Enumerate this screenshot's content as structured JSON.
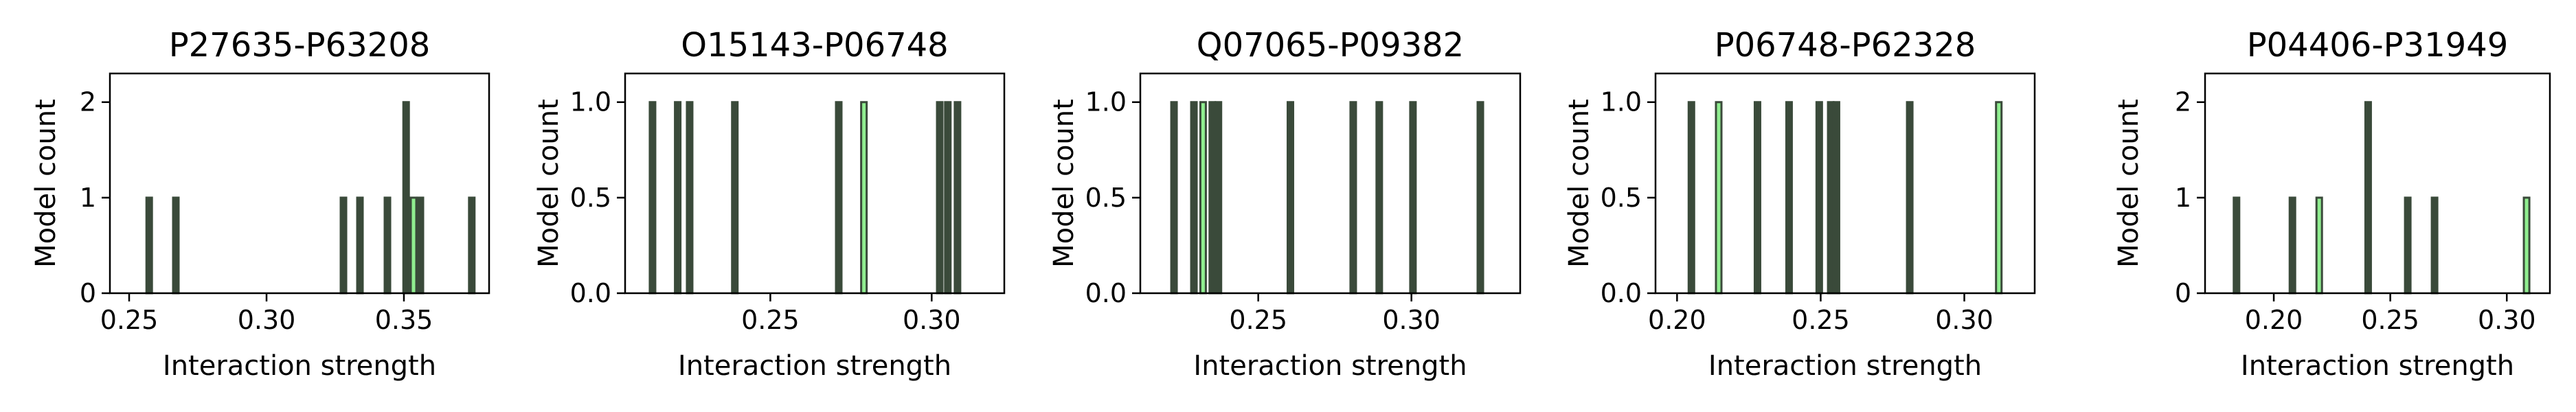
{
  "chart_data": [
    {
      "type": "bar",
      "title": "P27635-P63208",
      "xlabel": "Interaction strength",
      "ylabel": "Model count",
      "xlim": [
        0.243,
        0.381
      ],
      "ylim": [
        0,
        2.3
      ],
      "xticks": [
        {
          "v": 0.25,
          "label": "0.25"
        },
        {
          "v": 0.3,
          "label": "0.30"
        },
        {
          "v": 0.35,
          "label": "0.35"
        }
      ],
      "yticks": [
        {
          "v": 0,
          "label": "0"
        },
        {
          "v": 1,
          "label": "1"
        },
        {
          "v": 2,
          "label": "2"
        }
      ],
      "bars": [
        {
          "x": 0.2573,
          "count": 1,
          "highlight": false
        },
        {
          "x": 0.267,
          "count": 1,
          "highlight": false
        },
        {
          "x": 0.328,
          "count": 1,
          "highlight": false
        },
        {
          "x": 0.334,
          "count": 1,
          "highlight": false
        },
        {
          "x": 0.344,
          "count": 1,
          "highlight": false
        },
        {
          "x": 0.3508,
          "count": 2,
          "highlight": false
        },
        {
          "x": 0.3535,
          "count": 1,
          "highlight": true
        },
        {
          "x": 0.356,
          "count": 1,
          "highlight": false
        },
        {
          "x": 0.3747,
          "count": 1,
          "highlight": false
        }
      ]
    },
    {
      "type": "bar",
      "title": "O15143-P06748",
      "xlabel": "Interaction strength",
      "ylabel": "Model count",
      "xlim": [
        0.205,
        0.3225
      ],
      "ylim": [
        0,
        1.15
      ],
      "xticks": [
        {
          "v": 0.25,
          "label": "0.25"
        },
        {
          "v": 0.3,
          "label": "0.30"
        }
      ],
      "yticks": [
        {
          "v": 0,
          "label": "0.0"
        },
        {
          "v": 0.5,
          "label": "0.5"
        },
        {
          "v": 1.0,
          "label": "1.0"
        }
      ],
      "bars": [
        {
          "x": 0.2135,
          "count": 1,
          "highlight": false
        },
        {
          "x": 0.2213,
          "count": 1,
          "highlight": false
        },
        {
          "x": 0.225,
          "count": 1,
          "highlight": false
        },
        {
          "x": 0.239,
          "count": 1,
          "highlight": false
        },
        {
          "x": 0.2712,
          "count": 1,
          "highlight": false
        },
        {
          "x": 0.279,
          "count": 1,
          "highlight": true
        },
        {
          "x": 0.3025,
          "count": 1,
          "highlight": false
        },
        {
          "x": 0.305,
          "count": 1,
          "highlight": false
        },
        {
          "x": 0.308,
          "count": 1,
          "highlight": false
        }
      ]
    },
    {
      "type": "bar",
      "title": "Q07065-P09382",
      "xlabel": "Interaction strength",
      "ylabel": "Model count",
      "xlim": [
        0.2115,
        0.3355
      ],
      "ylim": [
        0,
        1.15
      ],
      "xticks": [
        {
          "v": 0.25,
          "label": "0.25"
        },
        {
          "v": 0.3,
          "label": "0.30"
        }
      ],
      "yticks": [
        {
          "v": 0,
          "label": "0.0"
        },
        {
          "v": 0.5,
          "label": "0.5"
        },
        {
          "v": 1.0,
          "label": "1.0"
        }
      ],
      "bars": [
        {
          "x": 0.2225,
          "count": 1,
          "highlight": false
        },
        {
          "x": 0.229,
          "count": 1,
          "highlight": false
        },
        {
          "x": 0.232,
          "count": 1,
          "highlight": true
        },
        {
          "x": 0.235,
          "count": 1,
          "highlight": false
        },
        {
          "x": 0.237,
          "count": 1,
          "highlight": false
        },
        {
          "x": 0.2605,
          "count": 1,
          "highlight": false
        },
        {
          "x": 0.281,
          "count": 1,
          "highlight": false
        },
        {
          "x": 0.2895,
          "count": 1,
          "highlight": false
        },
        {
          "x": 0.3005,
          "count": 1,
          "highlight": false
        },
        {
          "x": 0.3225,
          "count": 1,
          "highlight": false
        }
      ]
    },
    {
      "type": "bar",
      "title": "P06748-P62328",
      "xlabel": "Interaction strength",
      "ylabel": "Model count",
      "xlim": [
        0.1925,
        0.3245
      ],
      "ylim": [
        0,
        1.15
      ],
      "xticks": [
        {
          "v": 0.2,
          "label": "0.20"
        },
        {
          "v": 0.25,
          "label": "0.25"
        },
        {
          "v": 0.3,
          "label": "0.30"
        }
      ],
      "yticks": [
        {
          "v": 0,
          "label": "0.0"
        },
        {
          "v": 0.5,
          "label": "0.5"
        },
        {
          "v": 1.0,
          "label": "1.0"
        }
      ],
      "bars": [
        {
          "x": 0.205,
          "count": 1,
          "highlight": false
        },
        {
          "x": 0.2145,
          "count": 1,
          "highlight": true
        },
        {
          "x": 0.228,
          "count": 1,
          "highlight": false
        },
        {
          "x": 0.239,
          "count": 1,
          "highlight": false
        },
        {
          "x": 0.2495,
          "count": 1,
          "highlight": false
        },
        {
          "x": 0.2535,
          "count": 1,
          "highlight": false
        },
        {
          "x": 0.2555,
          "count": 1,
          "highlight": false
        },
        {
          "x": 0.281,
          "count": 1,
          "highlight": false
        },
        {
          "x": 0.312,
          "count": 1,
          "highlight": true
        }
      ]
    },
    {
      "type": "bar",
      "title": "P04406-P31949",
      "xlabel": "Interaction strength",
      "ylabel": "Model count",
      "xlim": [
        0.1705,
        0.3185
      ],
      "ylim": [
        0,
        2.3
      ],
      "xticks": [
        {
          "v": 0.2,
          "label": "0.20"
        },
        {
          "v": 0.25,
          "label": "0.25"
        },
        {
          "v": 0.3,
          "label": "0.30"
        }
      ],
      "yticks": [
        {
          "v": 0,
          "label": "0"
        },
        {
          "v": 1,
          "label": "1"
        },
        {
          "v": 2,
          "label": "2"
        }
      ],
      "bars": [
        {
          "x": 0.184,
          "count": 1,
          "highlight": false
        },
        {
          "x": 0.208,
          "count": 1,
          "highlight": false
        },
        {
          "x": 0.2195,
          "count": 1,
          "highlight": true
        },
        {
          "x": 0.2405,
          "count": 2,
          "highlight": false
        },
        {
          "x": 0.2575,
          "count": 1,
          "highlight": false
        },
        {
          "x": 0.269,
          "count": 1,
          "highlight": false
        },
        {
          "x": 0.3085,
          "count": 1,
          "highlight": true
        }
      ]
    }
  ],
  "colors": {
    "edge": "#3a4a3a",
    "fill": "#3a4a3a",
    "highlight_fill": "#90ee90",
    "axis": "#000000"
  }
}
